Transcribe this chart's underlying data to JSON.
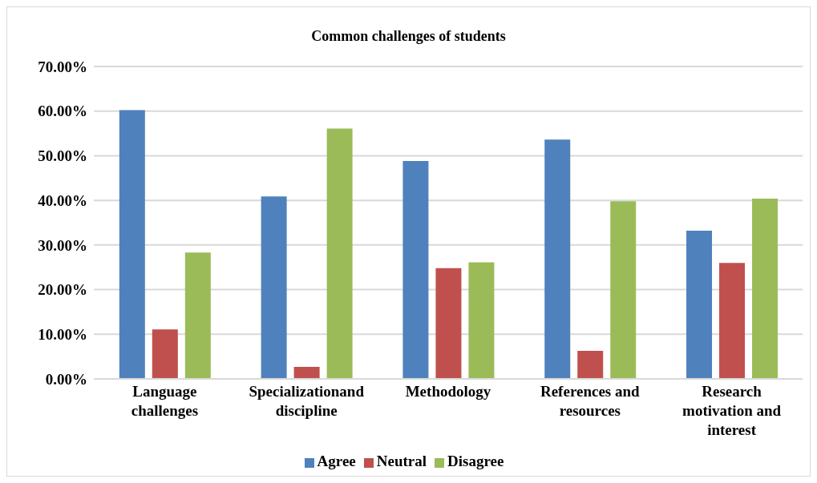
{
  "chart_data": {
    "type": "bar",
    "title": "Common challenges of students",
    "categories": [
      "Language challenges",
      "Specializationand discipline",
      "Methodology",
      "References and resources",
      "Research motivation and interest"
    ],
    "series": [
      {
        "name": "Agree",
        "color": "#4f81bd",
        "values": [
          60.2,
          40.9,
          48.8,
          53.6,
          33.2
        ]
      },
      {
        "name": "Neutral",
        "color": "#c0504d",
        "values": [
          11.1,
          2.7,
          24.8,
          6.3,
          26.0
        ]
      },
      {
        "name": "Disagree",
        "color": "#9bbb59",
        "values": [
          28.3,
          56.1,
          26.1,
          39.8,
          40.4
        ]
      }
    ],
    "ylim": [
      0,
      70
    ],
    "yticks": [
      {
        "value": 0,
        "label": "0.00%"
      },
      {
        "value": 10,
        "label": "10.00%"
      },
      {
        "value": 20,
        "label": "20.00%"
      },
      {
        "value": 30,
        "label": "30.00%"
      },
      {
        "value": 40,
        "label": "40.00%"
      },
      {
        "value": 50,
        "label": "50.00%"
      },
      {
        "value": 60,
        "label": "60.00%"
      },
      {
        "value": 70,
        "label": "70.00%"
      }
    ],
    "grid": "y",
    "legend": "bottom"
  }
}
